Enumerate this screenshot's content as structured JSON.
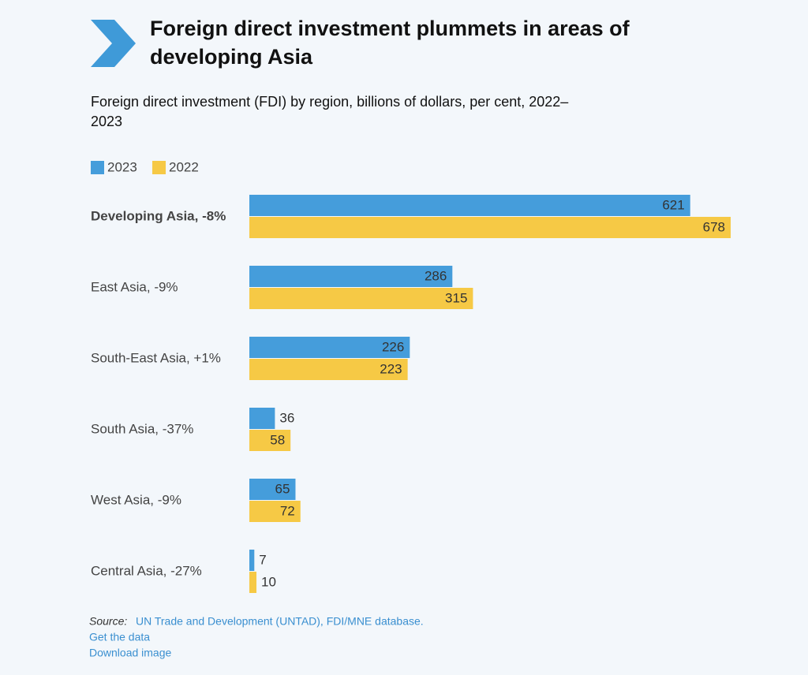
{
  "chart_data": {
    "type": "hbar",
    "title": [
      "Foreign direct investment plummets in areas of",
      "developing Asia"
    ],
    "subtitle": [
      "Foreign direct investment (FDI) by region, billions of dollars, per cent, 2022–",
      "2023"
    ],
    "categories": [
      "Developing Asia, -8%",
      "East Asia, -9%",
      "South-East Asia, +1%",
      "South Asia, -37%",
      "West Asia, -9%",
      "Central Asia, -27%"
    ],
    "series": [
      {
        "name": "2023",
        "color": "#459ddb",
        "values": [
          621,
          286,
          226,
          36,
          65,
          7
        ]
      },
      {
        "name": "2022",
        "color": "#f6c945",
        "values": [
          678,
          315,
          223,
          58,
          72,
          10
        ]
      }
    ],
    "source": {
      "label": "Source:",
      "text": "UN Trade and Development (UNTAD), FDI/MNE database."
    },
    "links": [
      "Get the data",
      "Download image"
    ]
  }
}
